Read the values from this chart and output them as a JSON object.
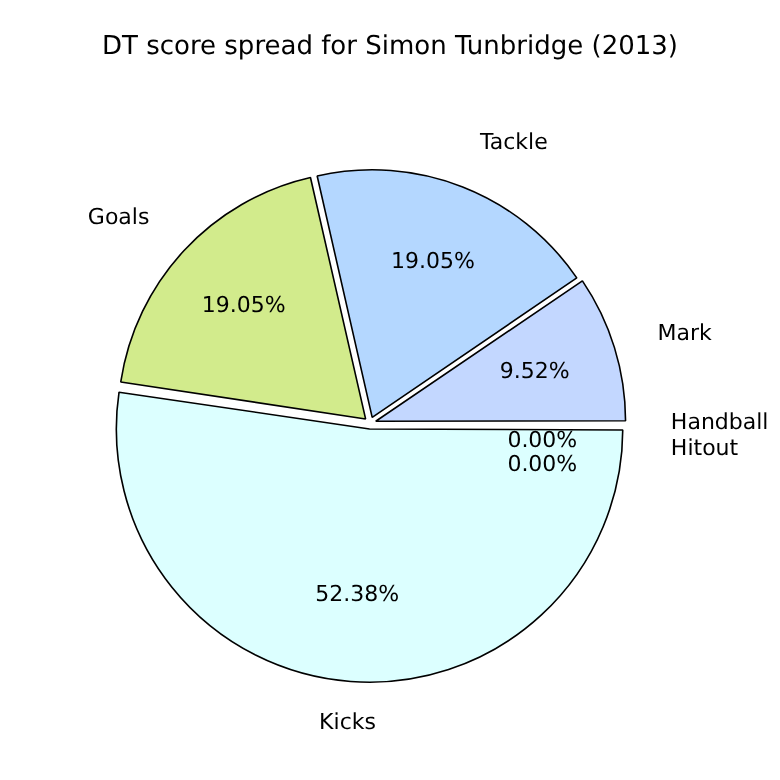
{
  "chart_data": {
    "type": "pie",
    "title": "DT score spread for Simon Tunbridge (2013)",
    "categories": [
      "Kicks",
      "Goals",
      "Tackle",
      "Mark",
      "Handball",
      "Hitout"
    ],
    "values": [
      52.38,
      19.05,
      19.05,
      9.52,
      0,
      0
    ],
    "value_labels": [
      "52.38%",
      "19.05%",
      "19.05%",
      "9.52%",
      "0.00%",
      "0.00%"
    ],
    "colors": [
      "#dcffff",
      "#d2eb8c",
      "#b4d7ff",
      "#c3d7ff",
      "#ffffff",
      "#ffffff"
    ],
    "legend": false
  }
}
